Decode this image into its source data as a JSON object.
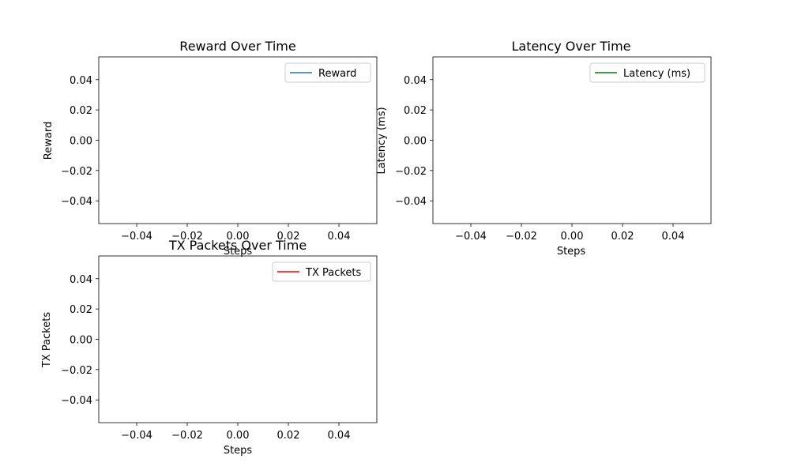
{
  "chart_data": [
    {
      "type": "line",
      "title": "Reward Over Time",
      "xlabel": "Steps",
      "ylabel": "Reward",
      "xlim": [
        -0.055,
        0.055
      ],
      "ylim": [
        -0.055,
        0.055
      ],
      "xticks": [
        -0.04,
        -0.02,
        0.0,
        0.02,
        0.04
      ],
      "xtick_labels": [
        "−0.04",
        "−0.02",
        "0.00",
        "0.02",
        "0.04"
      ],
      "yticks": [
        0.04,
        0.02,
        0.0,
        -0.02,
        -0.04
      ],
      "ytick_labels": [
        "0.04",
        "0.02",
        "0.00",
        "−0.02",
        "−0.04"
      ],
      "legend_position": "top-right",
      "series": [
        {
          "name": "Reward",
          "color": "#1f77b4",
          "x": [],
          "values": []
        }
      ]
    },
    {
      "type": "line",
      "title": "Latency Over Time",
      "xlabel": "Steps",
      "ylabel": "Latency (ms)",
      "xlim": [
        -0.055,
        0.055
      ],
      "ylim": [
        -0.055,
        0.055
      ],
      "xticks": [
        -0.04,
        -0.02,
        0.0,
        0.02,
        0.04
      ],
      "xtick_labels": [
        "−0.04",
        "−0.02",
        "0.00",
        "0.02",
        "0.04"
      ],
      "yticks": [
        0.04,
        0.02,
        0.0,
        -0.02,
        -0.04
      ],
      "ytick_labels": [
        "0.04",
        "0.02",
        "0.00",
        "−0.02",
        "−0.04"
      ],
      "legend_position": "top-right",
      "series": [
        {
          "name": "Latency (ms)",
          "color": "#008000",
          "x": [],
          "values": []
        }
      ]
    },
    {
      "type": "line",
      "title": "TX Packets Over Time",
      "xlabel": "Steps",
      "ylabel": "TX Packets",
      "xlim": [
        -0.055,
        0.055
      ],
      "ylim": [
        -0.055,
        0.055
      ],
      "xticks": [
        -0.04,
        -0.02,
        0.0,
        0.02,
        0.04
      ],
      "xtick_labels": [
        "−0.04",
        "−0.02",
        "0.00",
        "0.02",
        "0.04"
      ],
      "yticks": [
        0.04,
        0.02,
        0.0,
        -0.02,
        -0.04
      ],
      "ytick_labels": [
        "0.04",
        "0.02",
        "0.00",
        "−0.02",
        "−0.04"
      ],
      "legend_position": "top-right",
      "series": [
        {
          "name": "TX Packets",
          "color": "#ff0000",
          "x": [],
          "values": []
        }
      ]
    }
  ]
}
